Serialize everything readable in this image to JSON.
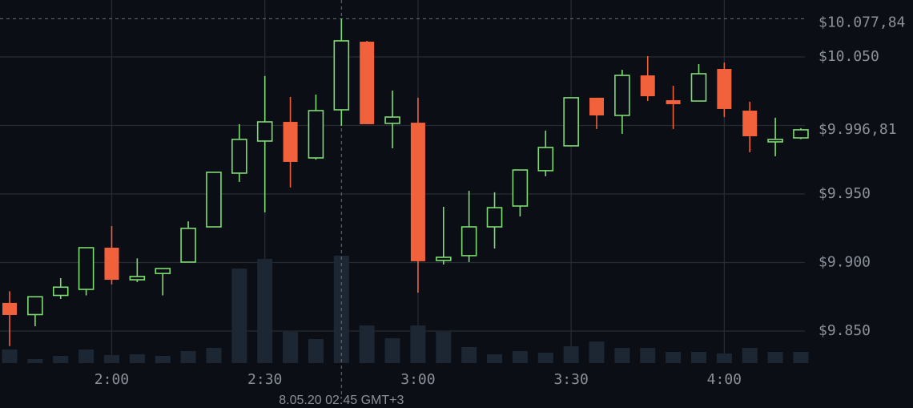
{
  "chart_data": {
    "type": "candlestick",
    "categories": [
      null,
      null,
      null,
      null,
      "2:00",
      null,
      null,
      null,
      null,
      null,
      "2:30",
      null,
      null,
      null,
      null,
      null,
      "3:00",
      null,
      null,
      null,
      null,
      null,
      "3:30",
      null,
      null,
      null,
      null,
      null,
      "4:00",
      null,
      null,
      null
    ],
    "open": [
      9870.5,
      9862,
      9876,
      9880.4,
      9910.8,
      9887.4,
      9892,
      9900.3,
      9926,
      9965.2,
      9988.6,
      10002.6,
      9976.3,
      10011.4,
      10061.1,
      10001.5,
      10002,
      9901.5,
      9905,
      9926,
      9941.2,
      9967,
      9985.1,
      10020.2,
      10007.3,
      10036.5,
      10018.4,
      10017.8,
      10041.2,
      10010.8,
      9988,
      9990.9
    ],
    "high": [
      9879,
      9875,
      9888.6,
      9911,
      9926.6,
      9903,
      9895.6,
      9930,
      9966,
      10000.9,
      10036,
      10020.8,
      10022.5,
      10077.84,
      10061.7,
      10025.4,
      10020.2,
      9940.6,
      9952.3,
      9951.2,
      9967.5,
      9996.2,
      10020.2,
      10020.2,
      10040.6,
      10050.6,
      10028.9,
      10044.7,
      10045.9,
      10017.3,
      10005.6,
      9998
    ],
    "low": [
      9839,
      9853.5,
      9873.4,
      9876,
      9884,
      9885.7,
      9876,
      9900,
      9926,
      9958.8,
      9936.6,
      9954.7,
      9975,
      9999.7,
      10000.9,
      9983.3,
      9878,
      9898.5,
      9900.3,
      9910.2,
      9933.6,
      9962.9,
      9985,
      9997.4,
      9993.9,
      10017.8,
      9997.4,
      10017.8,
      10006.1,
      9980.4,
      9977.5,
      9990
    ],
    "close": [
      9861.7,
      9875,
      9882,
      9910.8,
      9887.4,
      9889.8,
      9895.6,
      9924.9,
      9965.8,
      9989.8,
      10002.6,
      9973.4,
      10010.8,
      10061.7,
      10000.9,
      10006.1,
      9900.9,
      9903.8,
      9926,
      9940,
      9967.5,
      9983.9,
      10020.2,
      10007.3,
      10036.5,
      10021.3,
      10015.5,
      10037.7,
      10012,
      9992.1,
      9989.8,
      9996.81
    ],
    "volume": [
      17,
      5,
      9,
      17,
      10,
      11,
      9,
      15,
      19,
      118,
      130,
      39,
      30,
      134,
      47,
      31,
      47,
      39,
      20,
      11,
      15,
      13,
      21,
      27,
      19,
      19,
      14,
      14,
      12,
      19,
      14,
      14
    ],
    "volume_ylim": [
      0,
      150
    ],
    "up_color": "#7ddc72",
    "down_color": "#f0613c",
    "volume_color": "#1d2733",
    "ylim": [
      9826.6,
      10091.5
    ],
    "yticks": [
      {
        "value": 9850,
        "label": "$9.850"
      },
      {
        "value": 9900,
        "label": "$9.900"
      },
      {
        "value": 9950,
        "label": "$9.950"
      },
      {
        "value": 10000,
        "label": null
      },
      {
        "value": 10050,
        "label": "$10.050"
      }
    ],
    "grid": true,
    "high_line": {
      "value": 10077.84,
      "label": "$10.077,84"
    },
    "last_price": {
      "value": 9996.81,
      "label": "$9.996,81"
    },
    "crosshair": {
      "index": 13,
      "label": "8.05.20 02:45 GMT+3"
    }
  }
}
